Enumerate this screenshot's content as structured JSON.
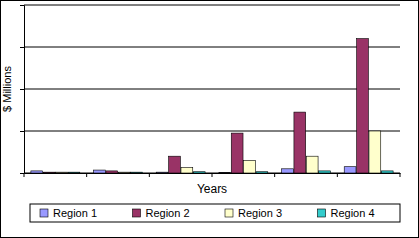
{
  "chart_data": {
    "type": "bar",
    "x_label": "Years",
    "y_label": "$ Millions",
    "categories": [
      null,
      null,
      null,
      null,
      null,
      null
    ],
    "series": [
      {
        "name": "Region 1",
        "color": "#9999ff",
        "values": [
          0.05,
          0.07,
          0.02,
          0.01,
          0.1,
          0.15
        ]
      },
      {
        "name": "Region 2",
        "color": "#993366",
        "values": [
          0.02,
          0.05,
          0.4,
          0.95,
          1.45,
          3.2
        ]
      },
      {
        "name": "Region 3",
        "color": "#ffffcc",
        "values": [
          0.02,
          0.02,
          0.13,
          0.3,
          0.4,
          1.0
        ]
      },
      {
        "name": "Region 4",
        "color": "#33cccc",
        "values": [
          0.02,
          0.02,
          0.03,
          0.03,
          0.05,
          0.05
        ]
      }
    ],
    "ylim": [
      0,
      4
    ],
    "yticks": [
      0,
      1,
      2,
      3,
      4
    ],
    "grid": true,
    "legend": "bottom",
    "tick_labels": false
  }
}
